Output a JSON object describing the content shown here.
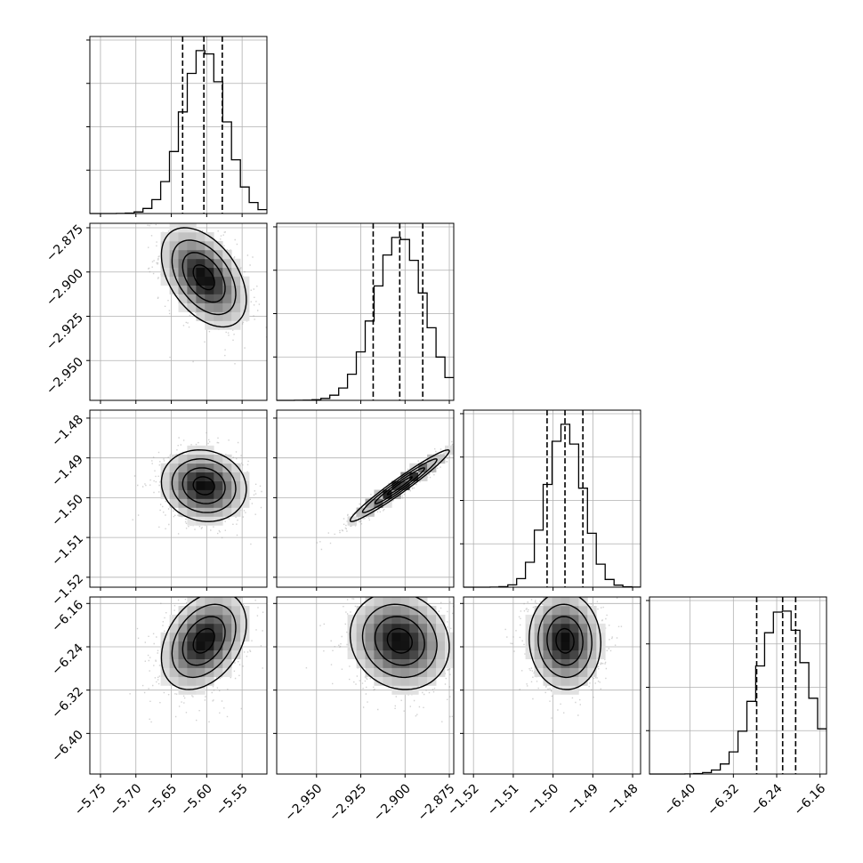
{
  "chart_data": {
    "type": "corner",
    "parameters": [
      {
        "index": 0,
        "lim": [
          -5.765,
          -5.515
        ],
        "ticks": [
          -5.75,
          -5.7,
          -5.65,
          -5.6,
          -5.55
        ],
        "tick_labels": [
          "−5.75",
          "−5.70",
          "−5.65",
          "−5.60",
          "−5.55"
        ],
        "quantiles": [
          -5.634,
          -5.604,
          -5.578
        ],
        "median": -5.604,
        "sigma": 0.03
      },
      {
        "index": 1,
        "lim": [
          -2.9725,
          -2.8725
        ],
        "ticks": [
          -2.95,
          -2.925,
          -2.9,
          -2.875
        ],
        "tick_labels": [
          "−2.950",
          "−2.925",
          "−2.900",
          "−2.875"
        ],
        "quantiles": [
          -2.918,
          -2.903,
          -2.89
        ],
        "median": -2.903,
        "sigma": 0.014
      },
      {
        "index": 2,
        "lim": [
          -1.5225,
          -1.478
        ],
        "ticks": [
          -1.52,
          -1.51,
          -1.5,
          -1.49,
          -1.48
        ],
        "tick_labels": [
          "−1.52",
          "−1.51",
          "−1.50",
          "−1.49",
          "−1.48"
        ],
        "quantiles": [
          -1.5015,
          -1.497,
          -1.4925
        ],
        "median": -1.497,
        "sigma": 0.0045
      },
      {
        "index": 3,
        "lim": [
          -6.475,
          -6.148
        ],
        "ticks": [
          -6.4,
          -6.32,
          -6.24,
          -6.16
        ],
        "tick_labels": [
          "−6.40",
          "−6.32",
          "−6.24",
          "−6.16"
        ],
        "quantiles": [
          -6.277,
          -6.229,
          -6.205
        ],
        "median": -6.229,
        "sigma": 0.045
      }
    ],
    "correlations": [
      {
        "i": 1,
        "j": 0,
        "rho": -0.45
      },
      {
        "i": 2,
        "j": 0,
        "rho": -0.1
      },
      {
        "i": 2,
        "j": 1,
        "rho": 0.97
      },
      {
        "i": 3,
        "j": 0,
        "rho": 0.35
      },
      {
        "i": 3,
        "j": 1,
        "rho": -0.12
      },
      {
        "i": 3,
        "j": 2,
        "rho": -0.05
      }
    ],
    "contour_levels_sigma": [
      0.5,
      1.0,
      1.5,
      2.0
    ],
    "grid": true,
    "colors": {
      "line": "#000000",
      "grid": "#b0b0b0",
      "points": "#9a9a9a",
      "frame": "#000000"
    }
  }
}
